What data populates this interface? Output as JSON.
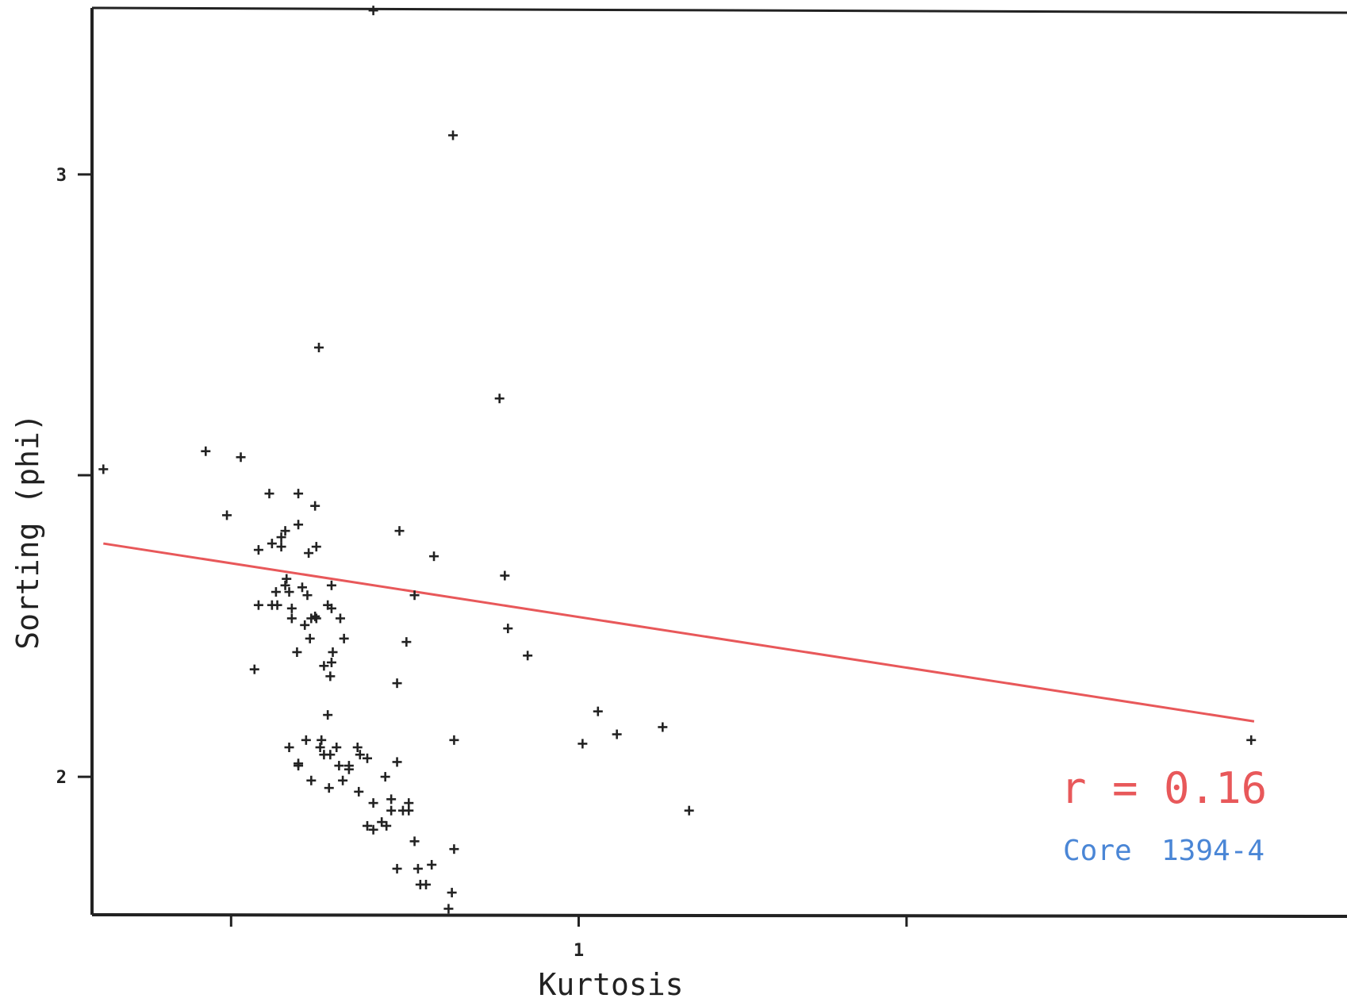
{
  "chart_data": {
    "type": "scatter",
    "title": "",
    "xlabel": "Kurtosis",
    "ylabel": "Sorting (phi)",
    "x_scale": "log",
    "y_scale": "log",
    "xlim": [
      0.6069,
      2.2
    ],
    "ylim": [
      1.8226,
      3.3557
    ],
    "x_ticks": [
      0.7,
      1,
      1.4
    ],
    "x_tick_labels": [
      "",
      "1",
      ""
    ],
    "y_ticks": [
      2,
      2.45,
      3
    ],
    "y_tick_labels": [
      "2",
      "",
      "3"
    ],
    "grid": false,
    "legend": "none",
    "marker": "+",
    "colors": {
      "points": "#222222",
      "fit_line": "#e8585a",
      "r_label": "#e8585a",
      "core_label": "#4a86d6",
      "axes": "#222222"
    },
    "fit_line": {
      "x": [
        0.614,
        2.0
      ],
      "y": [
        2.34,
        2.076
      ]
    },
    "annotations": {
      "r": "r = 0.16",
      "core_label": "Core",
      "core_id": "1394-4"
    },
    "series": [
      {
        "x": [
          0.614,
          0.707,
          0.922,
          0.766,
          0.879,
          0.81,
          0.682,
          0.728,
          0.75,
          0.74,
          0.697,
          0.737,
          0.764,
          0.758,
          0.776,
          0.862,
          0.832,
          0.927,
          0.717,
          0.72,
          0.73,
          0.74,
          0.737,
          0.72,
          0.73,
          0.75,
          0.763,
          0.775,
          0.777,
          0.764,
          0.783,
          0.753,
          0.743,
          0.77,
          0.76,
          0.749,
          0.776,
          0.776,
          0.733,
          0.745,
          0.757,
          0.763,
          0.755,
          0.773,
          0.759,
          0.786,
          0.83,
          0.949,
          0.734,
          0.741,
          0.745,
          0.773,
          0.768,
          0.75,
          0.767,
          0.756,
          0.743,
          0.78,
          0.797,
          0.799,
          0.79,
          0.77,
          0.75,
          0.805,
          0.775,
          0.782,
          0.83,
          0.79,
          0.82,
          0.785,
          0.76,
          0.774,
          0.798,
          0.825,
          0.84,
          0.81,
          0.825,
          0.835,
          0.805,
          0.821,
          0.817,
          0.84,
          0.845,
          0.81,
          0.88,
          0.86,
          0.848,
          0.83,
          0.85,
          0.875,
          0.855,
          0.878,
          1.004,
          1.02,
          1.09,
          1.04,
          1.12,
          1.994,
          0.93,
          0.845,
          0.838,
          0.88
        ],
        "y": [
          2.46,
          2.48,
          2.58,
          2.67,
          3.08,
          3.35,
          2.49,
          2.42,
          2.37,
          2.36,
          2.385,
          2.335,
          2.335,
          2.325,
          2.275,
          2.32,
          2.36,
          2.29,
          2.15,
          2.245,
          2.34,
          2.275,
          2.35,
          2.33,
          2.245,
          2.42,
          2.4,
          2.14,
          2.175,
          2.225,
          2.225,
          2.272,
          2.265,
          2.155,
          2.225,
          2.175,
          2.24,
          2.16,
          2.265,
          2.225,
          2.26,
          2.228,
          2.215,
          2.245,
          2.195,
          2.195,
          2.13,
          2.17,
          2.245,
          2.285,
          2.24,
          2.085,
          2.05,
          2.018,
          2.04,
          2.05,
          2.04,
          2.04,
          2.04,
          2.03,
          2.015,
          2.03,
          2.015,
          2.025,
          2.03,
          2.015,
          2.02,
          2.01,
          2.0,
          1.995,
          1.995,
          1.985,
          1.98,
          1.97,
          1.965,
          1.965,
          1.955,
          1.955,
          1.935,
          1.935,
          1.94,
          1.955,
          1.915,
          1.93,
          1.905,
          1.885,
          1.88,
          1.88,
          1.86,
          1.83,
          1.86,
          1.85,
          2.045,
          2.09,
          2.068,
          2.058,
          1.955,
          2.05,
          2.21,
          2.26,
          2.19,
          2.05
        ]
      }
    ]
  }
}
